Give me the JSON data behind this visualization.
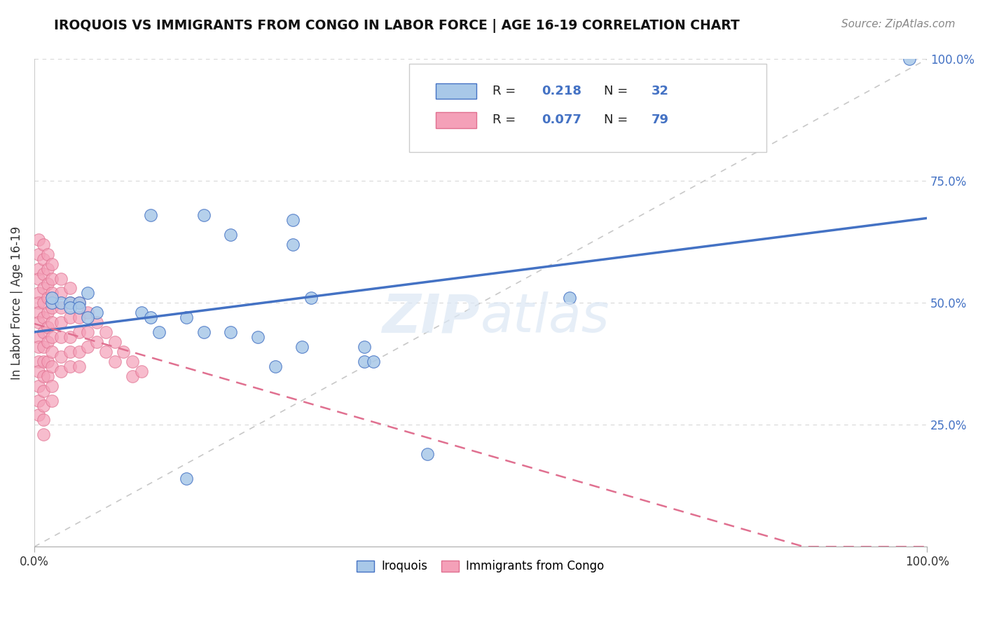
{
  "title": "IROQUOIS VS IMMIGRANTS FROM CONGO IN LABOR FORCE | AGE 16-19 CORRELATION CHART",
  "source": "Source: ZipAtlas.com",
  "ylabel": "In Labor Force | Age 16-19",
  "R_iroquois": 0.218,
  "N_iroquois": 32,
  "R_congo": 0.077,
  "N_congo": 79,
  "color_iroquois": "#a8c8e8",
  "color_congo": "#f4a0b8",
  "color_iroquois_line": "#4472c4",
  "color_congo_line": "#e07090",
  "color_ref_line": "#c8c8c8",
  "iroquois_x": [
    0.13,
    0.19,
    0.02,
    0.03,
    0.04,
    0.05,
    0.06,
    0.07,
    0.12,
    0.13,
    0.14,
    0.17,
    0.17,
    0.19,
    0.22,
    0.22,
    0.25,
    0.27,
    0.29,
    0.29,
    0.3,
    0.31,
    0.37,
    0.37,
    0.38,
    0.44,
    0.6,
    0.98,
    0.02,
    0.04,
    0.05,
    0.06
  ],
  "iroquois_y": [
    0.68,
    0.68,
    0.5,
    0.5,
    0.5,
    0.5,
    0.52,
    0.48,
    0.48,
    0.47,
    0.44,
    0.47,
    0.14,
    0.44,
    0.64,
    0.44,
    0.43,
    0.37,
    0.67,
    0.62,
    0.41,
    0.51,
    0.41,
    0.38,
    0.38,
    0.19,
    0.51,
    1.0,
    0.51,
    0.49,
    0.49,
    0.47
  ],
  "congo_x": [
    0.005,
    0.005,
    0.005,
    0.005,
    0.005,
    0.005,
    0.005,
    0.005,
    0.005,
    0.005,
    0.005,
    0.005,
    0.005,
    0.005,
    0.005,
    0.01,
    0.01,
    0.01,
    0.01,
    0.01,
    0.01,
    0.01,
    0.01,
    0.01,
    0.01,
    0.01,
    0.01,
    0.01,
    0.01,
    0.015,
    0.015,
    0.015,
    0.015,
    0.015,
    0.015,
    0.015,
    0.015,
    0.015,
    0.02,
    0.02,
    0.02,
    0.02,
    0.02,
    0.02,
    0.02,
    0.02,
    0.02,
    0.02,
    0.03,
    0.03,
    0.03,
    0.03,
    0.03,
    0.03,
    0.03,
    0.04,
    0.04,
    0.04,
    0.04,
    0.04,
    0.04,
    0.05,
    0.05,
    0.05,
    0.05,
    0.05,
    0.06,
    0.06,
    0.06,
    0.07,
    0.07,
    0.08,
    0.08,
    0.09,
    0.09,
    0.1,
    0.11,
    0.11,
    0.12
  ],
  "congo_y": [
    0.63,
    0.6,
    0.57,
    0.55,
    0.52,
    0.5,
    0.48,
    0.46,
    0.43,
    0.41,
    0.38,
    0.36,
    0.33,
    0.3,
    0.27,
    0.62,
    0.59,
    0.56,
    0.53,
    0.5,
    0.47,
    0.44,
    0.41,
    0.38,
    0.35,
    0.32,
    0.29,
    0.26,
    0.23,
    0.6,
    0.57,
    0.54,
    0.51,
    0.48,
    0.45,
    0.42,
    0.38,
    0.35,
    0.58,
    0.55,
    0.52,
    0.49,
    0.46,
    0.43,
    0.4,
    0.37,
    0.33,
    0.3,
    0.55,
    0.52,
    0.49,
    0.46,
    0.43,
    0.39,
    0.36,
    0.53,
    0.5,
    0.47,
    0.43,
    0.4,
    0.37,
    0.5,
    0.47,
    0.44,
    0.4,
    0.37,
    0.48,
    0.44,
    0.41,
    0.46,
    0.42,
    0.44,
    0.4,
    0.42,
    0.38,
    0.4,
    0.38,
    0.35,
    0.36
  ],
  "xlim": [
    0.0,
    1.0
  ],
  "ylim": [
    0.0,
    1.0
  ],
  "background_color": "#ffffff",
  "grid_color": "#d8d8d8"
}
